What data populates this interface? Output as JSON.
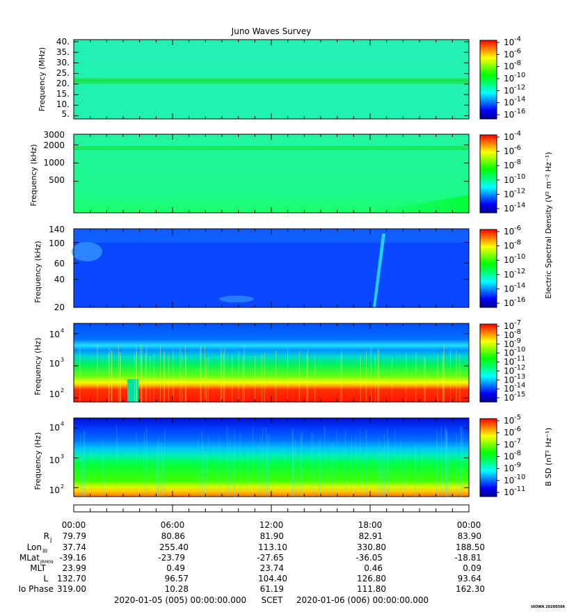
{
  "title": "Juno Waves Survey",
  "colors": {
    "cmap": [
      "#00008f",
      "#0000ff",
      "#0080ff",
      "#00ffff",
      "#00ff80",
      "#00ff00",
      "#80ff00",
      "#ffff00",
      "#ff8000",
      "#ff0000"
    ],
    "axis": "#000000",
    "background": "#ffffff"
  },
  "chart_data": [
    {
      "type": "heatmap",
      "ylabel": "Frequency (MHz)",
      "yscale": "linear",
      "ylim": [
        3.5,
        41
      ],
      "yticks": [
        5,
        10,
        15,
        20,
        25,
        30,
        35,
        40
      ],
      "yticklabels": [
        "5.",
        "10.",
        "15.",
        "20.",
        "25.",
        "30.",
        "35.",
        "40."
      ],
      "colorbar": {
        "exponents": [
          "-4",
          "-6",
          "-8",
          "-10",
          "-12",
          "-14",
          "-16"
        ]
      },
      "features": [
        "uniform background near 1e-12",
        "persistent emission band near 21 MHz"
      ]
    },
    {
      "type": "heatmap",
      "ylabel": "Frequency (kHz)",
      "yscale": "log",
      "ylim": [
        150,
        3000
      ],
      "yticks": [
        500,
        1000,
        2000,
        3000
      ],
      "yticklabels": [
        "500",
        "1000",
        "2000",
        "3000"
      ],
      "colorbar": {
        "exponents": [
          "-4",
          "-6",
          "-8",
          "-10",
          "-12",
          "-14"
        ]
      },
      "features": [
        "band near 1800 kHz",
        "enhanced emission at low frequency late in the day"
      ]
    },
    {
      "type": "heatmap",
      "ylabel": "Frequency (kHz)",
      "yscale": "log",
      "ylim": [
        20,
        140
      ],
      "yticks": [
        20,
        40,
        60,
        100,
        140
      ],
      "yticklabels": [
        "20",
        "40",
        "60",
        "100",
        "140"
      ],
      "colorbar": {
        "exponents": [
          "-6",
          "-8",
          "-10",
          "-12",
          "-14",
          "-16"
        ],
        "label": "Electric Spectral Density (V² m⁻² Hz⁻¹)"
      },
      "features": [
        "mostly background near 1e-14",
        "drifting emission near 18:00"
      ]
    },
    {
      "type": "heatmap",
      "ylabel": "Frequency (Hz)",
      "yscale": "log",
      "ylim": [
        75,
        21000
      ],
      "yticks": [
        100,
        1000,
        10000
      ],
      "yticklabels": [
        "10",
        "10",
        "10"
      ],
      "ytickexp": [
        "2",
        "3",
        "4"
      ],
      "colorbar": {
        "exponents": [
          "-7",
          "-8",
          "-9",
          "-10",
          "-11",
          "-12",
          "-13",
          "-14",
          "-15"
        ]
      },
      "features": [
        "intense emission below ~250 Hz",
        "gap around 03:40-03:55"
      ]
    },
    {
      "type": "heatmap",
      "ylabel": "Frequency (Hz)",
      "yscale": "log",
      "ylim": [
        50,
        22000
      ],
      "yticks": [
        100,
        1000,
        10000
      ],
      "yticklabels": [
        "10",
        "10",
        "10"
      ],
      "ytickexp": [
        "2",
        "3",
        "4"
      ],
      "colorbar": {
        "exponents": [
          "-5",
          "-6",
          "-7",
          "-8",
          "-9",
          "-10",
          "-11"
        ],
        "label": "B SD (nT² Hz⁻¹)"
      },
      "features": [
        "gradient from ~1e-8 at low frequency to ~1e-11 above 10 kHz"
      ]
    }
  ],
  "ephemeris": {
    "times": [
      "00:00",
      "06:00",
      "12:00",
      "18:00",
      "00:00"
    ],
    "rows": [
      {
        "label": "R",
        "sub": "J",
        "values": [
          "79.79",
          "80.86",
          "81.90",
          "82.91",
          "83.90"
        ]
      },
      {
        "label": "Lon",
        "sub": "III",
        "values": [
          "37.74",
          "255.40",
          "113.10",
          "330.80",
          "188.50"
        ]
      },
      {
        "label": "MLat",
        "sub": "JRM09",
        "values": [
          "-39.16",
          "-23.79",
          "-27.65",
          "-36.05",
          "-18.81"
        ]
      },
      {
        "label": "MLT",
        "sub": "",
        "values": [
          "23.99",
          "0.49",
          "23.74",
          "0.46",
          "0.09"
        ]
      },
      {
        "label": "L",
        "sub": "",
        "values": [
          "132.70",
          "96.57",
          "104.40",
          "126.80",
          "93.64"
        ]
      },
      {
        "label": "Io Phase",
        "sub": "",
        "values": [
          "319.00",
          "10.28",
          "61.19",
          "111.80",
          "162.30"
        ]
      }
    ]
  },
  "footer": {
    "start": "2020-01-05 (005) 00:00:00.000",
    "scet": "SCET",
    "end": "2020-01-06 (006) 00:00:00.000",
    "stamp": "UIOWA 20200306"
  }
}
